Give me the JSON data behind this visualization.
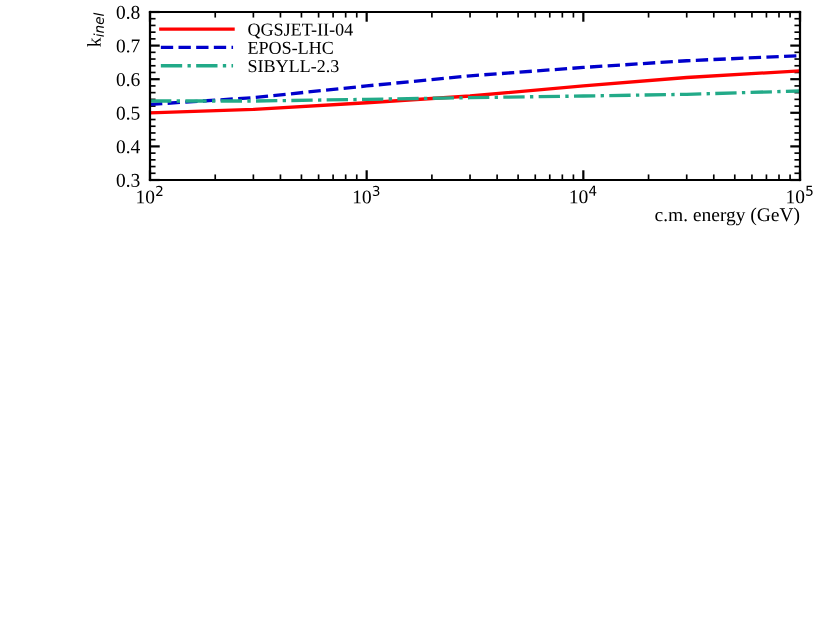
{
  "chart_data": {
    "type": "line",
    "xlabel": "c.m. energy (GeV)",
    "ylabel": "k$_{inel}$",
    "log": "x",
    "x": [
      100,
      300,
      1000,
      3000,
      10000,
      30000,
      100000
    ],
    "xlim": [
      100,
      100000
    ],
    "xticks": [
      {
        "value": 100,
        "label": "10$^{2}$"
      },
      {
        "value": 1000,
        "label": "10$^{3}$"
      },
      {
        "value": 10000,
        "label": "10$^{4}$"
      },
      {
        "value": 100000,
        "label": "10$^{5}$"
      }
    ],
    "ylim": [
      0.3,
      0.8
    ],
    "yticks": [
      0.3,
      0.4,
      0.5,
      0.6,
      0.7,
      0.8
    ],
    "grid": false,
    "legend": "top left",
    "series": [
      {
        "name": "QGSJET-II-04",
        "color": "#ff0000",
        "line_style": "solid",
        "values": [
          0.5,
          0.51,
          0.53,
          0.55,
          0.58,
          0.605,
          0.625
        ]
      },
      {
        "name": "EPOS-LHC",
        "color": "#0000cc",
        "line_style": "dashed",
        "values": [
          0.525,
          0.545,
          0.58,
          0.61,
          0.635,
          0.655,
          0.67
        ]
      },
      {
        "name": "SIBYLL-2.3",
        "color": "#22aa88",
        "line_style": "dashdot",
        "values": [
          0.535,
          0.535,
          0.54,
          0.545,
          0.55,
          0.555,
          0.565
        ]
      }
    ]
  }
}
